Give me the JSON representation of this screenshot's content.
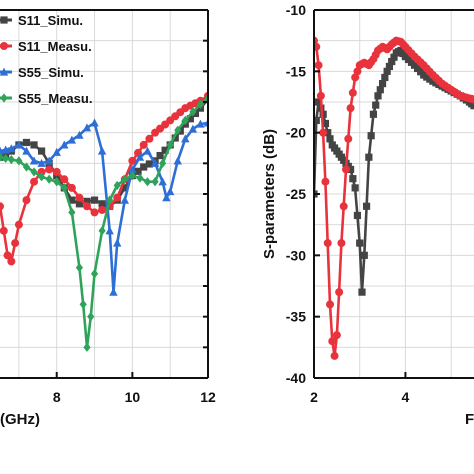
{
  "chart_data": [
    {
      "type": "line",
      "xlabel": "(GHz)",
      "ylabel": "",
      "xlim": [
        6.5,
        12
      ],
      "ylim": [
        -40,
        -10
      ],
      "xticks": [
        "8",
        "10",
        "12"
      ],
      "grid": true,
      "legend_position": "top-left",
      "series": [
        {
          "name": "S11_Simu.",
          "color": "#444444",
          "marker": "square",
          "x": [
            6.5,
            6.8,
            7.0,
            7.2,
            7.4,
            7.6,
            7.8,
            8.0,
            8.2,
            8.4,
            8.6,
            8.8,
            9.0,
            9.2,
            9.4,
            9.6,
            9.8,
            10.0,
            10.3,
            10.6,
            11.0,
            11.4,
            11.8,
            12.0
          ],
          "y": [
            -22,
            -21.5,
            -21.0,
            -20.8,
            -21.0,
            -21.5,
            -22.5,
            -23.5,
            -24.5,
            -25.5,
            -25.8,
            -25.6,
            -25.5,
            -25.8,
            -26.0,
            -25.5,
            -24.5,
            -23.5,
            -22.8,
            -22.3,
            -21.0,
            -19.3,
            -18.0,
            -17.3
          ]
        },
        {
          "name": "S11_Measu.",
          "color": "#e8323c",
          "marker": "circle",
          "x": [
            6.5,
            6.6,
            6.7,
            6.8,
            6.9,
            7.0,
            7.2,
            7.4,
            7.6,
            7.8,
            8.0,
            8.2,
            8.4,
            8.6,
            8.8,
            9.0,
            9.2,
            9.4,
            9.6,
            9.8,
            10.0,
            10.3,
            10.6,
            11.0,
            11.4,
            11.8,
            12.0
          ],
          "y": [
            -26,
            -28,
            -30,
            -30.5,
            -29,
            -27.5,
            -25.5,
            -24,
            -23.2,
            -23.0,
            -23.2,
            -23.8,
            -24.5,
            -25.3,
            -26.0,
            -26.5,
            -26.3,
            -26.0,
            -25.3,
            -23.8,
            -22.3,
            -21.0,
            -20.0,
            -19.0,
            -18.0,
            -17.4,
            -17.0
          ]
        },
        {
          "name": "S55_Simu.",
          "color": "#2e6fd6",
          "marker": "triangle",
          "x": [
            6.5,
            6.8,
            7.0,
            7.2,
            7.4,
            7.6,
            7.8,
            8.0,
            8.2,
            8.4,
            8.6,
            8.8,
            9.0,
            9.2,
            9.4,
            9.5,
            9.6,
            9.8,
            10.0,
            10.2,
            10.4,
            10.6,
            10.8,
            10.9,
            11.0,
            11.2,
            11.4,
            11.6,
            11.8,
            12.0
          ],
          "y": [
            -21.5,
            -21.3,
            -21.0,
            -21.5,
            -22.3,
            -22.5,
            -22.3,
            -21.6,
            -21.0,
            -20.6,
            -20.2,
            -19.6,
            -19.2,
            -21.5,
            -28.0,
            -33.0,
            -29.0,
            -25.5,
            -23.0,
            -22.0,
            -21.5,
            -22.5,
            -24.0,
            -25.3,
            -24.8,
            -22.3,
            -20.5,
            -19.7,
            -19.3,
            -19.2
          ]
        },
        {
          "name": "S55_Measu.",
          "color": "#2fa35a",
          "marker": "diamond",
          "x": [
            6.5,
            6.8,
            7.0,
            7.2,
            7.4,
            7.6,
            7.8,
            8.0,
            8.2,
            8.4,
            8.6,
            8.7,
            8.8,
            8.9,
            9.0,
            9.2,
            9.4,
            9.6,
            9.8,
            10.0,
            10.2,
            10.4,
            10.6,
            10.8,
            11.0,
            11.2,
            11.4,
            11.6,
            11.8,
            12.0
          ],
          "y": [
            -22,
            -22.2,
            -22.3,
            -22.8,
            -23.2,
            -23.6,
            -23.8,
            -24.0,
            -24.5,
            -26.5,
            -31.0,
            -34.0,
            -37.5,
            -35.0,
            -31.5,
            -28.0,
            -25.5,
            -24.3,
            -23.8,
            -23.5,
            -23.7,
            -24.0,
            -24.0,
            -22.5,
            -21.0,
            -19.8,
            -19.0,
            -18.3,
            -17.7,
            -17.2
          ]
        }
      ]
    },
    {
      "type": "line",
      "xlabel": "F",
      "ylabel": "S-parameters (dB)",
      "xlim": [
        2,
        5.5
      ],
      "ylim": [
        -40,
        -10
      ],
      "xticks": [
        "2",
        "4"
      ],
      "yticks": [
        "-10",
        "-15",
        "-20",
        "-25",
        "-30",
        "-35",
        "-40"
      ],
      "grid": true,
      "series": [
        {
          "color": "#444444",
          "marker": "square",
          "x": [
            2.0,
            2.05,
            2.1,
            2.2,
            2.3,
            2.4,
            2.5,
            2.6,
            2.7,
            2.8,
            2.9,
            3.0,
            3.05,
            3.1,
            3.2,
            3.3,
            3.4,
            3.5,
            3.6,
            3.7,
            3.8,
            3.9,
            4.0,
            4.2,
            4.4,
            4.6,
            4.8,
            5.0,
            5.2,
            5.4,
            5.5
          ],
          "y": [
            -25,
            -19.0,
            -17.5,
            -18.5,
            -20.0,
            -21.0,
            -21.5,
            -22.0,
            -22.5,
            -23.0,
            -24.5,
            -29.0,
            -33.0,
            -30.0,
            -22.0,
            -18.5,
            -17.0,
            -16.0,
            -15.0,
            -14.2,
            -13.5,
            -13.3,
            -13.8,
            -14.5,
            -15.3,
            -15.8,
            -16.2,
            -16.6,
            -17.0,
            -17.5,
            -17.8
          ]
        },
        {
          "color": "#e8323c",
          "marker": "circle",
          "x": [
            2.0,
            2.05,
            2.1,
            2.15,
            2.2,
            2.25,
            2.3,
            2.35,
            2.4,
            2.45,
            2.5,
            2.55,
            2.6,
            2.7,
            2.8,
            2.9,
            3.0,
            3.1,
            3.2,
            3.3,
            3.4,
            3.5,
            3.6,
            3.7,
            3.8,
            3.9,
            4.0,
            4.2,
            4.4,
            4.6,
            4.8,
            5.0,
            5.2,
            5.4,
            5.5
          ],
          "y": [
            -12.5,
            -13.0,
            -14.5,
            -17.0,
            -20.0,
            -24.0,
            -29.0,
            -34.0,
            -37.0,
            -38.2,
            -36.5,
            -33.0,
            -29.0,
            -23.0,
            -18.0,
            -15.5,
            -14.5,
            -14.3,
            -14.5,
            -14.0,
            -13.3,
            -13.0,
            -13.2,
            -12.8,
            -12.5,
            -12.6,
            -13.0,
            -13.8,
            -14.5,
            -15.3,
            -16.0,
            -16.5,
            -17.0,
            -17.2,
            -17.3
          ]
        }
      ]
    }
  ],
  "legend": {
    "items": [
      {
        "label": "S11_Simu.",
        "color": "#444444",
        "marker": "square"
      },
      {
        "label": "S11_Measu.",
        "color": "#e8323c",
        "marker": "circle"
      },
      {
        "label": "S55_Simu.",
        "color": "#2e6fd6",
        "marker": "triangle"
      },
      {
        "label": "S55_Measu.",
        "color": "#2fa35a",
        "marker": "diamond"
      }
    ]
  }
}
